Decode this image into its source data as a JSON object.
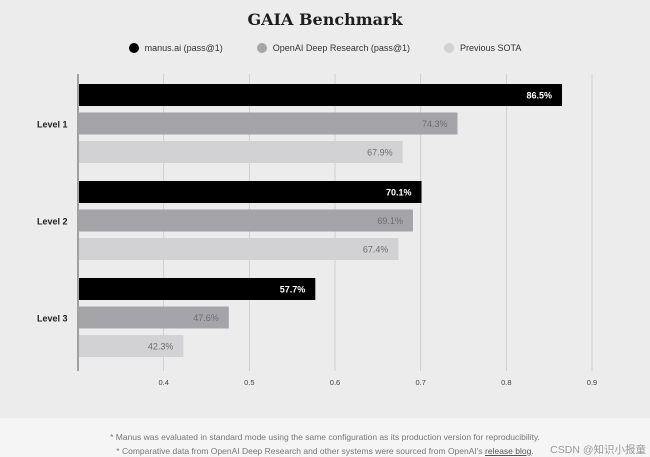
{
  "chart_data": {
    "type": "bar",
    "orientation": "horizontal",
    "title": "GAIA Benchmark",
    "categories": [
      "Level 1",
      "Level 2",
      "Level 3"
    ],
    "series": [
      {
        "name": "manus.ai (pass@1)",
        "values": [
          86.5,
          70.1,
          57.7
        ],
        "labels": [
          "86.5%",
          "70.1%",
          "57.7%"
        ],
        "color": "#000000"
      },
      {
        "name": "OpenAI Deep Research (pass@1)",
        "values": [
          74.3,
          69.1,
          47.6
        ],
        "labels": [
          "74.3%",
          "69.1%",
          "47.6%"
        ],
        "color": "#a5a5a9"
      },
      {
        "name": "Previous SOTA",
        "values": [
          67.9,
          67.4,
          42.3
        ],
        "labels": [
          "67.9%",
          "67.4%",
          "42.3%"
        ],
        "color": "#d2d2d5"
      }
    ],
    "xlim": [
      0.3,
      0.9
    ],
    "xticks": [
      "0.4",
      "0.5",
      "0.6",
      "0.7",
      "0.8",
      "0.9"
    ],
    "xtick_values": [
      0.4,
      0.5,
      0.6,
      0.7,
      0.8,
      0.9
    ],
    "grid": true,
    "legend_position": "top-center"
  },
  "footer": {
    "note1": "* Manus was evaluated in standard mode using the same configuration as its production version for reproducibility.",
    "note2_prefix": "* Comparative data from OpenAI Deep Research and other systems were sourced from OpenAI's ",
    "note2_link": "release blog",
    "note2_suffix": "."
  },
  "watermark": "CSDN @知识小报童"
}
